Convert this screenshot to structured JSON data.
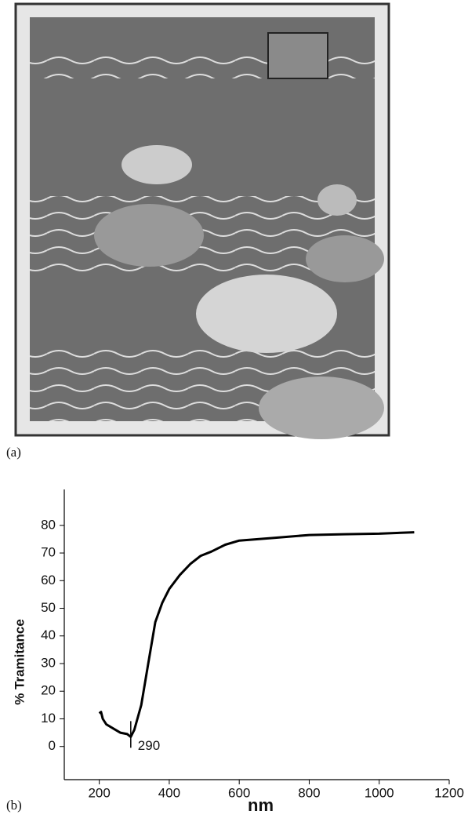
{
  "panel_labels": [
    "(a)",
    "(b)"
  ],
  "chart_data": {
    "type": "line",
    "x_label": "nm",
    "y_label": "% Tramitance",
    "x": [
      200,
      205,
      210,
      220,
      240,
      260,
      280,
      290,
      300,
      320,
      340,
      360,
      380,
      400,
      430,
      460,
      490,
      520,
      560,
      600,
      700,
      800,
      900,
      1000,
      1100
    ],
    "values": [
      12,
      12.5,
      10,
      8,
      6.5,
      5,
      4.5,
      3.5,
      6,
      15,
      30,
      45,
      52,
      57,
      62,
      66,
      69,
      70.5,
      73,
      74.5,
      75.5,
      76.5,
      76.8,
      77,
      77.5
    ],
    "color": "#000000",
    "annotation_x": 290,
    "xlim": [
      100,
      1200
    ],
    "xticks": [
      200,
      400,
      600,
      800,
      1000,
      1200
    ],
    "ylim": [
      -12,
      93
    ],
    "yticks": [
      0,
      10,
      20,
      30,
      40,
      50,
      60,
      70,
      80
    ],
    "grid": false
  }
}
